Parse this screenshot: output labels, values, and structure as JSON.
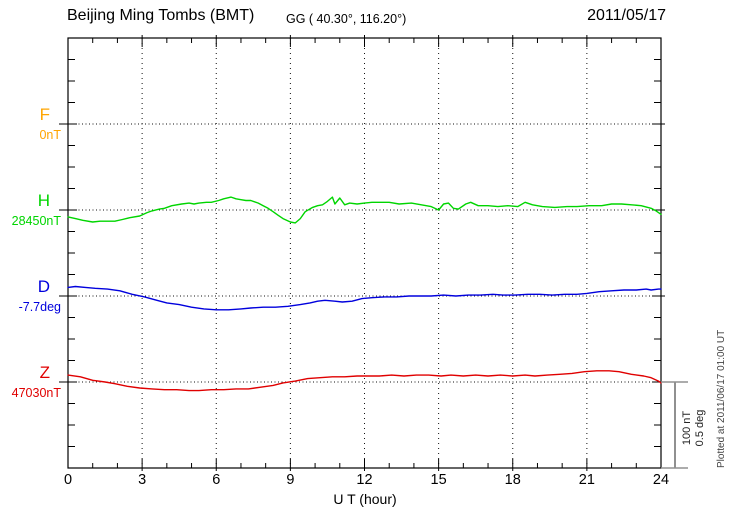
{
  "header": {
    "station": "Beijing Ming Tombs (BMT)",
    "coords": "GG ( 40.30°, 116.20°)",
    "date": "2011/05/17"
  },
  "scale_bar": {
    "line1": "100 nT",
    "line2": "0.5 deg"
  },
  "footer_note": "Plotted at 2011/06/17 01:00 UT",
  "chart_data": {
    "type": "line",
    "title": "Beijing Ming Tombs (BMT)",
    "observatory": {
      "code": "BMT",
      "geographic": "GG ( 40.30°, 116.20°)"
    },
    "date": "2011/05/17",
    "x": {
      "label": "U T (hour)",
      "range": [
        0,
        24
      ],
      "ticks": [
        0,
        3,
        6,
        9,
        12,
        15,
        18,
        21,
        24
      ],
      "minor_tick_every_hours": 1
    },
    "y_scale_per_division": {
      "nT": 100,
      "deg": 0.5
    },
    "grid": "dotted vertical lines every 3 hours; dotted horizontal line at each channel baseline",
    "points_are": "[UT hour, offset from base_value in channel unit]",
    "series": [
      {
        "name": "F",
        "unit": "nT",
        "base_value": 0,
        "baseline_label": "0nT",
        "color": "#FFA500",
        "points": [],
        "note": "no data plotted, baseline only"
      },
      {
        "name": "H",
        "unit": "nT",
        "base_value": 28450,
        "baseline_label": "28450nT",
        "color": "#00D500",
        "points": [
          [
            0,
            -8
          ],
          [
            0.3,
            -10
          ],
          [
            0.6,
            -12
          ],
          [
            1,
            -14
          ],
          [
            1.3,
            -13
          ],
          [
            1.6,
            -13
          ],
          [
            1.9,
            -13
          ],
          [
            2.2,
            -11
          ],
          [
            2.5,
            -9
          ],
          [
            2.9,
            -7
          ],
          [
            3.2,
            -3
          ],
          [
            3.4,
            -1
          ],
          [
            3.7,
            1
          ],
          [
            3.9,
            2
          ],
          [
            4.2,
            5
          ],
          [
            4.6,
            7
          ],
          [
            4.9,
            8
          ],
          [
            5.1,
            7
          ],
          [
            5.3,
            8
          ],
          [
            5.6,
            9
          ],
          [
            5.8,
            9
          ],
          [
            6.1,
            11
          ],
          [
            6.3,
            13
          ],
          [
            6.6,
            15
          ],
          [
            6.8,
            13
          ],
          [
            7,
            12
          ],
          [
            7.2,
            11
          ],
          [
            7.4,
            11
          ],
          [
            7.7,
            8
          ],
          [
            7.9,
            5
          ],
          [
            8.1,
            2
          ],
          [
            8.3,
            -2
          ],
          [
            8.5,
            -6
          ],
          [
            8.7,
            -10
          ],
          [
            9,
            -14
          ],
          [
            9.2,
            -15
          ],
          [
            9.4,
            -10
          ],
          [
            9.6,
            -2
          ],
          [
            9.9,
            3
          ],
          [
            10.1,
            5
          ],
          [
            10.3,
            6
          ],
          [
            10.5,
            10
          ],
          [
            10.7,
            15
          ],
          [
            10.8,
            7
          ],
          [
            11,
            14
          ],
          [
            11.2,
            6
          ],
          [
            11.4,
            8
          ],
          [
            11.7,
            7
          ],
          [
            12,
            8
          ],
          [
            12.3,
            9
          ],
          [
            12.7,
            9
          ],
          [
            13,
            9
          ],
          [
            13.4,
            7
          ],
          [
            13.9,
            8
          ],
          [
            14.3,
            6
          ],
          [
            14.7,
            4
          ],
          [
            15,
            0
          ],
          [
            15.2,
            7
          ],
          [
            15.4,
            8
          ],
          [
            15.6,
            2
          ],
          [
            15.8,
            1
          ],
          [
            16.1,
            7
          ],
          [
            16.3,
            9
          ],
          [
            16.6,
            5
          ],
          [
            17,
            5
          ],
          [
            17.4,
            4
          ],
          [
            17.8,
            5
          ],
          [
            18.2,
            4
          ],
          [
            18.5,
            9
          ],
          [
            18.8,
            6
          ],
          [
            19.2,
            4
          ],
          [
            19.7,
            3
          ],
          [
            20.2,
            4
          ],
          [
            20.6,
            4
          ],
          [
            21.1,
            5
          ],
          [
            21.6,
            5
          ],
          [
            22,
            7
          ],
          [
            22.4,
            7
          ],
          [
            22.8,
            6
          ],
          [
            23.2,
            5
          ],
          [
            23.6,
            2
          ],
          [
            23.8,
            -1
          ],
          [
            24,
            -5
          ]
        ]
      },
      {
        "name": "D",
        "unit": "deg",
        "base_value": -7.7,
        "baseline_label": "-7.7deg",
        "color": "#0000DD",
        "points": [
          [
            0,
            0.05
          ],
          [
            0.3,
            0.055
          ],
          [
            0.7,
            0.05
          ],
          [
            1.1,
            0.045
          ],
          [
            1.6,
            0.04
          ],
          [
            2.1,
            0.03
          ],
          [
            2.6,
            0.01
          ],
          [
            3.1,
            -0.005
          ],
          [
            3.6,
            -0.025
          ],
          [
            4,
            -0.04
          ],
          [
            4.5,
            -0.05
          ],
          [
            5,
            -0.065
          ],
          [
            5.5,
            -0.075
          ],
          [
            6,
            -0.08
          ],
          [
            6.5,
            -0.08
          ],
          [
            7,
            -0.075
          ],
          [
            7.4,
            -0.07
          ],
          [
            7.9,
            -0.065
          ],
          [
            8.4,
            -0.065
          ],
          [
            8.9,
            -0.06
          ],
          [
            9.4,
            -0.05
          ],
          [
            9.8,
            -0.04
          ],
          [
            10.1,
            -0.03
          ],
          [
            10.4,
            -0.025
          ],
          [
            10.8,
            -0.03
          ],
          [
            11.1,
            -0.035
          ],
          [
            11.5,
            -0.03
          ],
          [
            11.9,
            -0.015
          ],
          [
            12.3,
            -0.01
          ],
          [
            12.8,
            -0.005
          ],
          [
            13.3,
            -0.005
          ],
          [
            13.8,
            0
          ],
          [
            14.2,
            0
          ],
          [
            14.7,
            0
          ],
          [
            15.2,
            0.005
          ],
          [
            15.7,
            0
          ],
          [
            16.2,
            0.005
          ],
          [
            16.7,
            0.005
          ],
          [
            17.2,
            0.01
          ],
          [
            17.6,
            0.005
          ],
          [
            18.1,
            0.005
          ],
          [
            18.6,
            0.01
          ],
          [
            19.1,
            0.01
          ],
          [
            19.6,
            0.005
          ],
          [
            20.1,
            0.01
          ],
          [
            20.6,
            0.01
          ],
          [
            21,
            0.015
          ],
          [
            21.5,
            0.025
          ],
          [
            22,
            0.03
          ],
          [
            22.5,
            0.035
          ],
          [
            23,
            0.035
          ],
          [
            23.4,
            0.04
          ],
          [
            23.6,
            0.035
          ],
          [
            23.9,
            0.04
          ],
          [
            24,
            0.04
          ]
        ]
      },
      {
        "name": "Z",
        "unit": "nT",
        "base_value": 47030,
        "baseline_label": "47030nT",
        "color": "#E00000",
        "points": [
          [
            0,
            8
          ],
          [
            0.5,
            6
          ],
          [
            1,
            2
          ],
          [
            1.5,
            0
          ],
          [
            1.9,
            -2
          ],
          [
            2.4,
            -5
          ],
          [
            2.9,
            -7
          ],
          [
            3.4,
            -8
          ],
          [
            3.9,
            -9
          ],
          [
            4.4,
            -9
          ],
          [
            4.9,
            -10
          ],
          [
            5.3,
            -10
          ],
          [
            5.8,
            -9
          ],
          [
            6.3,
            -9
          ],
          [
            6.8,
            -8
          ],
          [
            7.3,
            -8
          ],
          [
            7.8,
            -6
          ],
          [
            8.3,
            -4
          ],
          [
            8.7,
            -1
          ],
          [
            9.2,
            1
          ],
          [
            9.7,
            4
          ],
          [
            10.2,
            5
          ],
          [
            10.7,
            6
          ],
          [
            11.2,
            6
          ],
          [
            11.7,
            7
          ],
          [
            12.1,
            7
          ],
          [
            12.6,
            7
          ],
          [
            13.1,
            8
          ],
          [
            13.6,
            7
          ],
          [
            14.1,
            8
          ],
          [
            14.6,
            8
          ],
          [
            15.1,
            7
          ],
          [
            15.5,
            8
          ],
          [
            16,
            7
          ],
          [
            16.5,
            8
          ],
          [
            17,
            7
          ],
          [
            17.5,
            8
          ],
          [
            18,
            7
          ],
          [
            18.5,
            8
          ],
          [
            18.9,
            7
          ],
          [
            19.4,
            8
          ],
          [
            19.9,
            9
          ],
          [
            20.4,
            10
          ],
          [
            20.9,
            12
          ],
          [
            21.4,
            13
          ],
          [
            21.9,
            13
          ],
          [
            22.3,
            12
          ],
          [
            22.8,
            9
          ],
          [
            23.3,
            7
          ],
          [
            23.6,
            5
          ],
          [
            23.9,
            1
          ],
          [
            24,
            -1
          ]
        ]
      }
    ]
  }
}
